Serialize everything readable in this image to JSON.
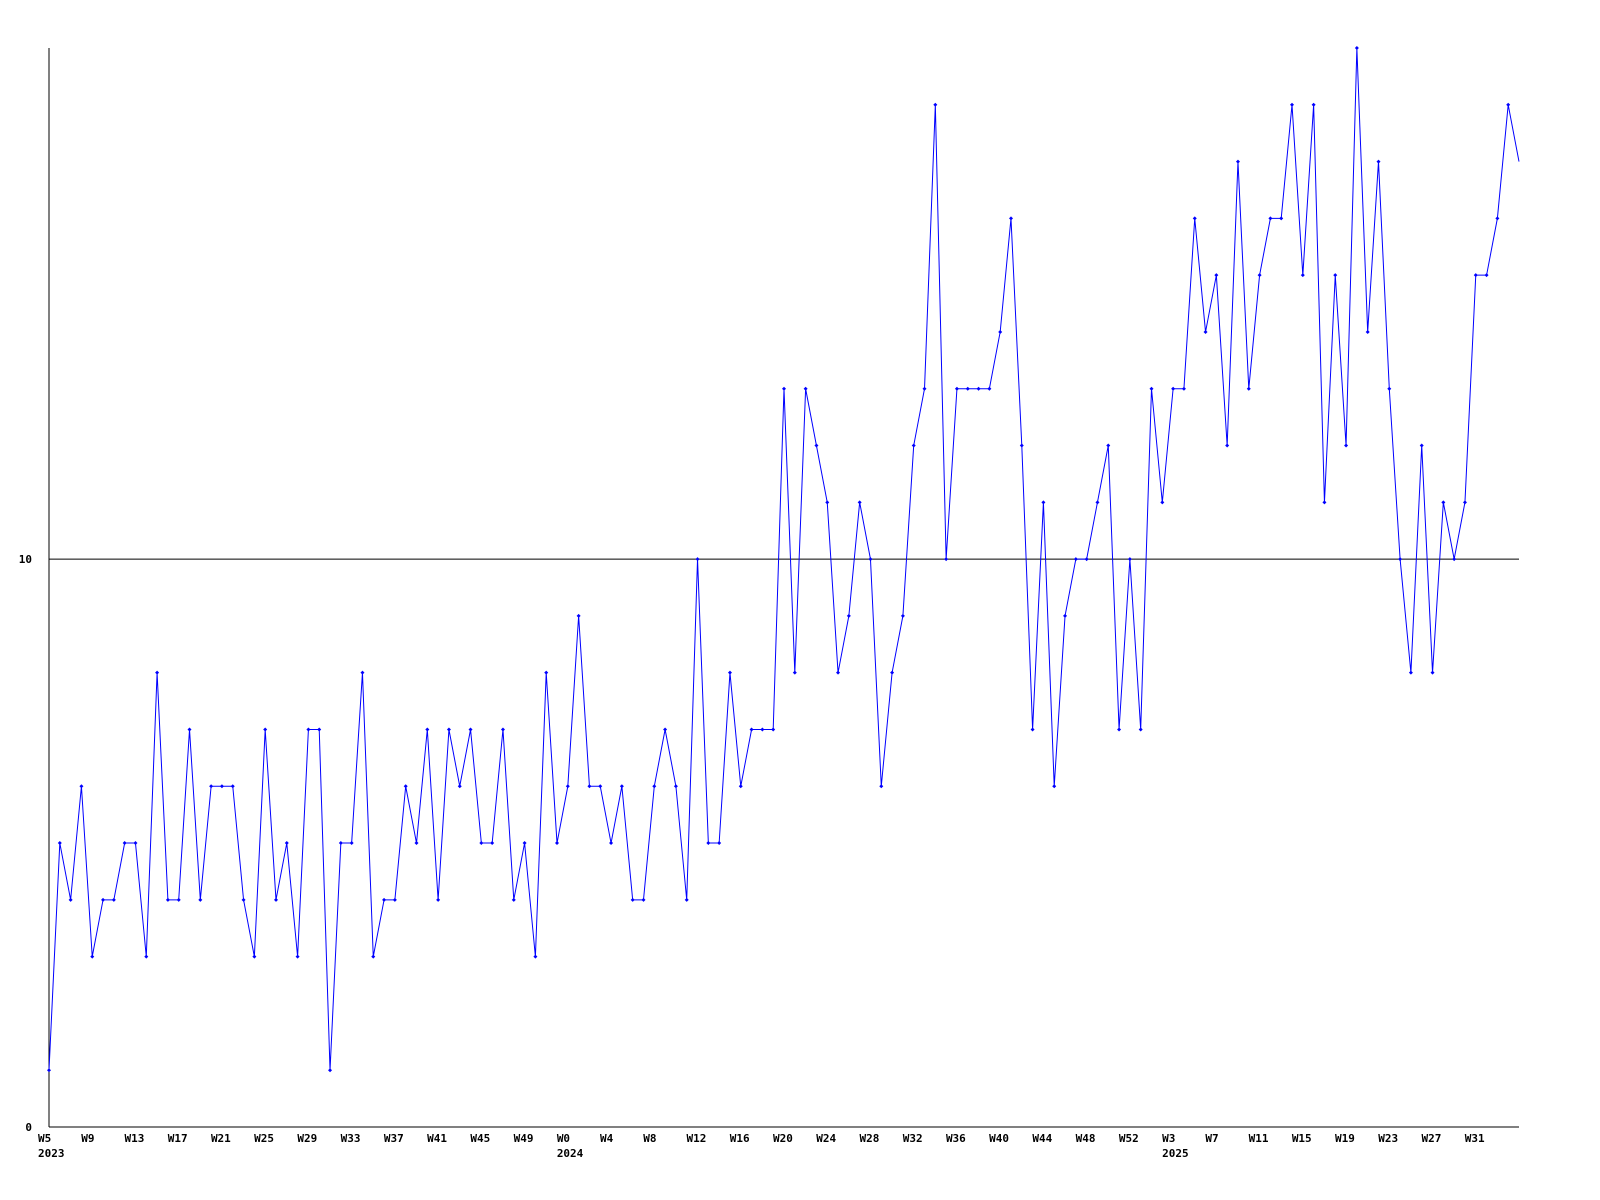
{
  "chart_data": {
    "type": "line",
    "categories": [
      "W5\n2023",
      null,
      null,
      null,
      "W9",
      null,
      null,
      null,
      "W13",
      null,
      null,
      null,
      "W17",
      null,
      null,
      null,
      "W21",
      null,
      null,
      null,
      "W25",
      null,
      null,
      null,
      "W29",
      null,
      null,
      null,
      "W33",
      null,
      null,
      null,
      "W37",
      null,
      null,
      null,
      "W41",
      null,
      null,
      null,
      "W45",
      null,
      null,
      null,
      "W49",
      null,
      null,
      null,
      "W0\n2024",
      null,
      null,
      null,
      "W4",
      null,
      null,
      null,
      "W8",
      null,
      null,
      null,
      "W12",
      null,
      null,
      null,
      "W16",
      null,
      null,
      null,
      "W20",
      null,
      null,
      null,
      "W24",
      null,
      null,
      null,
      "W28",
      null,
      null,
      null,
      "W32",
      null,
      null,
      null,
      "W36",
      null,
      null,
      null,
      "W40",
      null,
      null,
      null,
      "W44",
      null,
      null,
      null,
      "W48",
      null,
      null,
      null,
      "W52",
      null,
      null,
      null,
      "W3\n2025",
      null,
      null,
      null,
      "W7",
      null,
      null,
      null,
      "W11",
      null,
      null,
      null,
      "W15",
      null,
      null,
      null,
      "W19",
      null,
      null,
      null,
      "W23",
      null,
      null,
      null,
      "W27",
      null,
      null,
      null,
      "W31",
      null,
      null,
      null,
      null
    ],
    "series": [
      {
        "color": "#0000ff",
        "values": [
          1,
          5,
          4,
          6,
          3,
          4,
          4,
          5,
          5,
          3,
          8,
          4,
          4,
          7,
          4,
          6,
          6,
          6,
          4,
          3,
          7,
          4,
          5,
          3,
          7,
          7,
          1,
          5,
          5,
          8,
          3,
          4,
          4,
          6,
          5,
          7,
          4,
          7,
          6,
          7,
          5,
          5,
          7,
          4,
          5,
          3,
          8,
          5,
          6,
          9,
          6,
          6,
          5,
          6,
          4,
          4,
          6,
          7,
          6,
          4,
          10,
          5,
          5,
          8,
          6,
          7,
          7,
          7,
          13,
          8,
          13,
          12,
          11,
          8,
          9,
          11,
          10,
          6,
          8,
          9,
          12,
          13,
          18,
          10,
          13,
          13,
          13,
          13,
          14,
          16,
          12,
          7,
          11,
          6,
          9,
          10,
          10,
          11,
          12,
          7,
          10,
          7,
          13,
          11,
          13,
          13,
          16,
          14,
          15,
          12,
          17,
          13,
          15,
          16,
          16,
          18,
          15,
          18,
          11,
          15,
          12,
          19,
          14,
          17,
          13,
          10,
          8,
          12,
          8,
          11,
          10,
          11,
          15,
          15,
          16,
          18,
          17
        ]
      }
    ],
    "ylim": [
      0,
      19
    ],
    "yticks": [
      0,
      10
    ],
    "grid": true
  }
}
